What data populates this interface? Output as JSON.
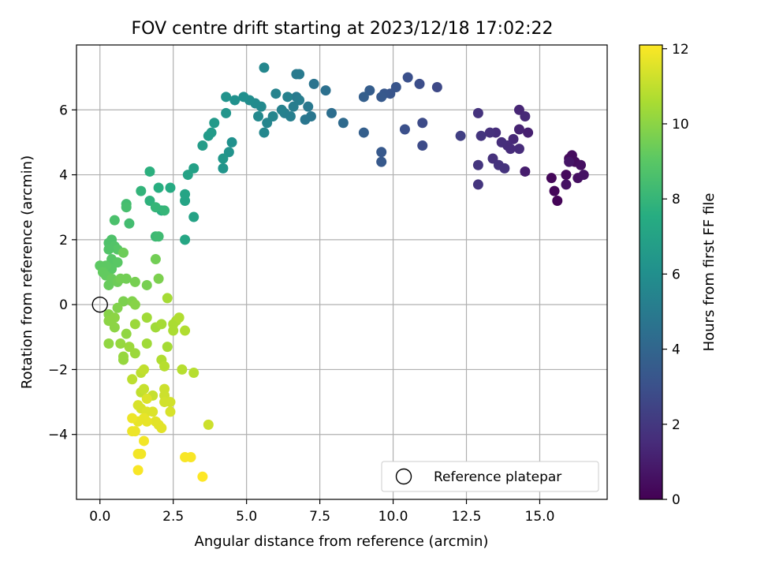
{
  "chart_data": {
    "type": "scatter",
    "title": "FOV centre drift starting at 2023/12/18 17:02:22",
    "xlabel": "Angular distance from reference (arcmin)",
    "ylabel": "Rotation from reference (arcmin)",
    "xlim": [
      -0.8,
      17.3
    ],
    "ylim": [
      -6.0,
      8.0
    ],
    "xticks": [
      0.0,
      2.5,
      5.0,
      7.5,
      10.0,
      12.5,
      15.0
    ],
    "xtick_labels": [
      "0.0",
      "2.5",
      "5.0",
      "7.5",
      "10.0",
      "12.5",
      "15.0"
    ],
    "yticks": [
      -4,
      -2,
      0,
      2,
      4,
      6
    ],
    "ytick_labels": [
      "−4",
      "−2",
      "0",
      "2",
      "4",
      "6"
    ],
    "grid": true,
    "colormap": "viridis",
    "colorbar": {
      "label": "Hours from first FF file",
      "range": [
        0,
        12.1
      ],
      "ticks": [
        0,
        2,
        4,
        6,
        8,
        10,
        12
      ],
      "tick_labels": [
        "0",
        "2",
        "4",
        "6",
        "8",
        "10",
        "12"
      ]
    },
    "reference": {
      "x": 0.0,
      "y": 0.0,
      "label": "Reference platepar",
      "marker": "open-circle"
    },
    "legend": {
      "position": "bottom-right",
      "entries": [
        "Reference platepar"
      ]
    },
    "points": [
      {
        "x": 15.4,
        "y": 3.9,
        "c": 0.2
      },
      {
        "x": 15.6,
        "y": 3.2,
        "c": 0.1
      },
      {
        "x": 15.5,
        "y": 3.5,
        "c": 0.2
      },
      {
        "x": 15.9,
        "y": 4.0,
        "c": 0.3
      },
      {
        "x": 16.0,
        "y": 4.5,
        "c": 0.3
      },
      {
        "x": 16.1,
        "y": 4.6,
        "c": 0.4
      },
      {
        "x": 16.2,
        "y": 4.4,
        "c": 0.4
      },
      {
        "x": 16.3,
        "y": 3.9,
        "c": 0.5
      },
      {
        "x": 16.4,
        "y": 4.3,
        "c": 0.5
      },
      {
        "x": 16.5,
        "y": 4.0,
        "c": 0.6
      },
      {
        "x": 15.9,
        "y": 3.7,
        "c": 0.6
      },
      {
        "x": 16.0,
        "y": 4.4,
        "c": 0.7
      },
      {
        "x": 14.5,
        "y": 4.1,
        "c": 1.0
      },
      {
        "x": 14.6,
        "y": 5.3,
        "c": 1.1
      },
      {
        "x": 14.3,
        "y": 5.4,
        "c": 1.2
      },
      {
        "x": 14.3,
        "y": 6.0,
        "c": 1.3
      },
      {
        "x": 14.5,
        "y": 5.8,
        "c": 1.4
      },
      {
        "x": 14.1,
        "y": 5.1,
        "c": 1.4
      },
      {
        "x": 14.0,
        "y": 4.8,
        "c": 1.5
      },
      {
        "x": 13.9,
        "y": 4.9,
        "c": 1.5
      },
      {
        "x": 14.3,
        "y": 4.8,
        "c": 1.5
      },
      {
        "x": 13.7,
        "y": 5.0,
        "c": 1.6
      },
      {
        "x": 13.5,
        "y": 5.3,
        "c": 1.6
      },
      {
        "x": 13.3,
        "y": 5.3,
        "c": 1.7
      },
      {
        "x": 13.4,
        "y": 4.5,
        "c": 1.7
      },
      {
        "x": 13.6,
        "y": 4.3,
        "c": 1.8
      },
      {
        "x": 13.8,
        "y": 4.2,
        "c": 1.8
      },
      {
        "x": 12.9,
        "y": 5.9,
        "c": 1.8
      },
      {
        "x": 13.0,
        "y": 5.2,
        "c": 1.9
      },
      {
        "x": 12.9,
        "y": 4.3,
        "c": 1.9
      },
      {
        "x": 12.9,
        "y": 3.7,
        "c": 1.9
      },
      {
        "x": 12.3,
        "y": 5.2,
        "c": 2.3
      },
      {
        "x": 11.5,
        "y": 6.7,
        "c": 2.7
      },
      {
        "x": 11.0,
        "y": 5.6,
        "c": 2.8
      },
      {
        "x": 11.0,
        "y": 4.9,
        "c": 2.8
      },
      {
        "x": 10.9,
        "y": 6.8,
        "c": 2.9
      },
      {
        "x": 10.5,
        "y": 7.0,
        "c": 3.0
      },
      {
        "x": 10.4,
        "y": 5.4,
        "c": 3.0
      },
      {
        "x": 10.1,
        "y": 6.7,
        "c": 3.2
      },
      {
        "x": 9.9,
        "y": 6.5,
        "c": 3.2
      },
      {
        "x": 9.7,
        "y": 6.5,
        "c": 3.3
      },
      {
        "x": 9.6,
        "y": 6.4,
        "c": 3.4
      },
      {
        "x": 9.6,
        "y": 4.7,
        "c": 3.4
      },
      {
        "x": 9.6,
        "y": 4.4,
        "c": 3.4
      },
      {
        "x": 9.2,
        "y": 6.6,
        "c": 3.6
      },
      {
        "x": 9.0,
        "y": 6.4,
        "c": 3.7
      },
      {
        "x": 9.0,
        "y": 5.3,
        "c": 3.7
      },
      {
        "x": 8.3,
        "y": 5.6,
        "c": 4.2
      },
      {
        "x": 7.9,
        "y": 5.9,
        "c": 4.4
      },
      {
        "x": 7.7,
        "y": 6.6,
        "c": 4.5
      },
      {
        "x": 7.3,
        "y": 6.8,
        "c": 4.7
      },
      {
        "x": 7.2,
        "y": 5.8,
        "c": 4.8
      },
      {
        "x": 7.0,
        "y": 5.7,
        "c": 4.8
      },
      {
        "x": 7.1,
        "y": 6.1,
        "c": 4.9
      },
      {
        "x": 6.8,
        "y": 7.1,
        "c": 5.0
      },
      {
        "x": 6.7,
        "y": 7.1,
        "c": 5.0
      },
      {
        "x": 6.7,
        "y": 6.4,
        "c": 5.0
      },
      {
        "x": 6.8,
        "y": 6.3,
        "c": 5.1
      },
      {
        "x": 6.6,
        "y": 6.1,
        "c": 5.1
      },
      {
        "x": 6.5,
        "y": 5.8,
        "c": 5.2
      },
      {
        "x": 6.3,
        "y": 5.9,
        "c": 5.2
      },
      {
        "x": 6.4,
        "y": 6.4,
        "c": 5.3
      },
      {
        "x": 6.2,
        "y": 6.0,
        "c": 5.3
      },
      {
        "x": 6.0,
        "y": 6.5,
        "c": 5.4
      },
      {
        "x": 5.9,
        "y": 5.8,
        "c": 5.5
      },
      {
        "x": 5.7,
        "y": 5.6,
        "c": 5.5
      },
      {
        "x": 5.6,
        "y": 7.3,
        "c": 5.6
      },
      {
        "x": 5.6,
        "y": 5.3,
        "c": 5.6
      },
      {
        "x": 5.5,
        "y": 6.1,
        "c": 5.7
      },
      {
        "x": 5.4,
        "y": 5.8,
        "c": 5.7
      },
      {
        "x": 5.3,
        "y": 6.2,
        "c": 5.8
      },
      {
        "x": 5.1,
        "y": 6.3,
        "c": 5.9
      },
      {
        "x": 4.9,
        "y": 6.4,
        "c": 6.0
      },
      {
        "x": 4.6,
        "y": 6.3,
        "c": 6.1
      },
      {
        "x": 4.5,
        "y": 5.0,
        "c": 6.1
      },
      {
        "x": 4.3,
        "y": 6.4,
        "c": 6.2
      },
      {
        "x": 4.4,
        "y": 4.7,
        "c": 6.2
      },
      {
        "x": 4.3,
        "y": 5.9,
        "c": 6.3
      },
      {
        "x": 4.2,
        "y": 4.2,
        "c": 6.3
      },
      {
        "x": 4.2,
        "y": 4.5,
        "c": 6.4
      },
      {
        "x": 3.9,
        "y": 5.6,
        "c": 6.5
      },
      {
        "x": 3.8,
        "y": 5.3,
        "c": 6.6
      },
      {
        "x": 3.7,
        "y": 5.2,
        "c": 6.6
      },
      {
        "x": 3.5,
        "y": 4.9,
        "c": 6.7
      },
      {
        "x": 3.2,
        "y": 4.2,
        "c": 6.9
      },
      {
        "x": 3.0,
        "y": 4.0,
        "c": 7.0
      },
      {
        "x": 3.2,
        "y": 2.7,
        "c": 7.0
      },
      {
        "x": 2.9,
        "y": 3.4,
        "c": 7.1
      },
      {
        "x": 2.9,
        "y": 3.2,
        "c": 7.1
      },
      {
        "x": 2.9,
        "y": 2.0,
        "c": 7.2
      },
      {
        "x": 2.4,
        "y": 3.6,
        "c": 7.4
      },
      {
        "x": 2.1,
        "y": 2.9,
        "c": 7.5
      },
      {
        "x": 2.0,
        "y": 3.6,
        "c": 7.6
      },
      {
        "x": 1.7,
        "y": 4.1,
        "c": 7.7
      },
      {
        "x": 1.7,
        "y": 3.2,
        "c": 7.8
      },
      {
        "x": 1.4,
        "y": 3.5,
        "c": 7.9
      },
      {
        "x": 1.9,
        "y": 3.0,
        "c": 8.0
      },
      {
        "x": 2.2,
        "y": 2.9,
        "c": 8.0
      },
      {
        "x": 1.9,
        "y": 2.1,
        "c": 8.2
      },
      {
        "x": 2.0,
        "y": 2.1,
        "c": 8.3
      },
      {
        "x": 1.0,
        "y": 2.5,
        "c": 8.4
      },
      {
        "x": 0.9,
        "y": 3.1,
        "c": 8.4
      },
      {
        "x": 0.9,
        "y": 3.0,
        "c": 8.5
      },
      {
        "x": 0.5,
        "y": 2.6,
        "c": 8.6
      },
      {
        "x": 0.4,
        "y": 2.0,
        "c": 8.7
      },
      {
        "x": 0.3,
        "y": 1.9,
        "c": 8.7
      },
      {
        "x": 0.5,
        "y": 1.8,
        "c": 8.8
      },
      {
        "x": 0.6,
        "y": 1.7,
        "c": 8.9
      },
      {
        "x": 0.3,
        "y": 1.7,
        "c": 8.8
      },
      {
        "x": 0.4,
        "y": 1.4,
        "c": 8.9
      },
      {
        "x": 0.6,
        "y": 1.3,
        "c": 9.0
      },
      {
        "x": 0.4,
        "y": 1.1,
        "c": 9.0
      },
      {
        "x": 0.2,
        "y": 1.2,
        "c": 9.1
      },
      {
        "x": 0.0,
        "y": 1.2,
        "c": 9.1
      },
      {
        "x": 0.1,
        "y": 1.0,
        "c": 9.2
      },
      {
        "x": 0.2,
        "y": 0.9,
        "c": 9.2
      },
      {
        "x": 0.4,
        "y": 0.8,
        "c": 9.3
      },
      {
        "x": 0.3,
        "y": 0.6,
        "c": 9.3
      },
      {
        "x": 0.6,
        "y": 0.7,
        "c": 9.4
      },
      {
        "x": 0.8,
        "y": 1.6,
        "c": 9.4
      },
      {
        "x": 0.7,
        "y": 0.8,
        "c": 9.5
      },
      {
        "x": 0.9,
        "y": 0.8,
        "c": 9.5
      },
      {
        "x": 1.2,
        "y": 0.7,
        "c": 9.6
      },
      {
        "x": 1.6,
        "y": 0.6,
        "c": 9.6
      },
      {
        "x": 1.9,
        "y": 1.4,
        "c": 9.5
      },
      {
        "x": 2.0,
        "y": 0.8,
        "c": 9.7
      },
      {
        "x": 0.8,
        "y": 0.1,
        "c": 9.7
      },
      {
        "x": 0.6,
        "y": -0.1,
        "c": 9.8
      },
      {
        "x": 1.1,
        "y": 0.1,
        "c": 9.8
      },
      {
        "x": 1.2,
        "y": 0.0,
        "c": 9.9
      },
      {
        "x": 0.3,
        "y": -0.3,
        "c": 9.9
      },
      {
        "x": 0.5,
        "y": -0.4,
        "c": 10.0
      },
      {
        "x": 0.3,
        "y": -0.5,
        "c": 10.0
      },
      {
        "x": 0.5,
        "y": -0.7,
        "c": 10.0
      },
      {
        "x": 0.9,
        "y": -0.9,
        "c": 10.1
      },
      {
        "x": 0.3,
        "y": -1.2,
        "c": 10.1
      },
      {
        "x": 0.7,
        "y": -1.2,
        "c": 10.2
      },
      {
        "x": 0.8,
        "y": -1.7,
        "c": 10.2
      },
      {
        "x": 0.8,
        "y": -1.6,
        "c": 10.2
      },
      {
        "x": 1.0,
        "y": -1.3,
        "c": 10.3
      },
      {
        "x": 1.2,
        "y": -1.5,
        "c": 10.3
      },
      {
        "x": 1.2,
        "y": -0.6,
        "c": 10.3
      },
      {
        "x": 1.6,
        "y": -0.4,
        "c": 10.4
      },
      {
        "x": 1.6,
        "y": -1.2,
        "c": 10.4
      },
      {
        "x": 1.9,
        "y": -0.7,
        "c": 10.4
      },
      {
        "x": 2.1,
        "y": -0.6,
        "c": 10.5
      },
      {
        "x": 2.3,
        "y": 0.2,
        "c": 10.5
      },
      {
        "x": 2.3,
        "y": -1.3,
        "c": 10.5
      },
      {
        "x": 2.5,
        "y": -0.6,
        "c": 10.6
      },
      {
        "x": 2.6,
        "y": -0.5,
        "c": 10.6
      },
      {
        "x": 2.5,
        "y": -0.8,
        "c": 10.6
      },
      {
        "x": 2.7,
        "y": -0.4,
        "c": 10.7
      },
      {
        "x": 2.9,
        "y": -0.8,
        "c": 10.7
      },
      {
        "x": 2.1,
        "y": -1.7,
        "c": 10.7
      },
      {
        "x": 2.2,
        "y": -1.9,
        "c": 10.8
      },
      {
        "x": 2.8,
        "y": -2.0,
        "c": 10.8
      },
      {
        "x": 3.2,
        "y": -2.1,
        "c": 10.8
      },
      {
        "x": 1.1,
        "y": -2.3,
        "c": 10.9
      },
      {
        "x": 1.4,
        "y": -2.1,
        "c": 10.9
      },
      {
        "x": 1.5,
        "y": -2.0,
        "c": 11.0
      },
      {
        "x": 1.4,
        "y": -2.7,
        "c": 11.0
      },
      {
        "x": 1.5,
        "y": -2.6,
        "c": 11.1
      },
      {
        "x": 1.8,
        "y": -2.8,
        "c": 11.1
      },
      {
        "x": 2.2,
        "y": -2.6,
        "c": 11.2
      },
      {
        "x": 2.2,
        "y": -2.8,
        "c": 11.2
      },
      {
        "x": 2.2,
        "y": -3.0,
        "c": 11.3
      },
      {
        "x": 2.4,
        "y": -3.0,
        "c": 11.3
      },
      {
        "x": 2.4,
        "y": -3.3,
        "c": 11.4
      },
      {
        "x": 1.3,
        "y": -3.1,
        "c": 11.4
      },
      {
        "x": 1.4,
        "y": -3.2,
        "c": 11.4
      },
      {
        "x": 1.6,
        "y": -2.9,
        "c": 11.5
      },
      {
        "x": 1.6,
        "y": -3.3,
        "c": 11.5
      },
      {
        "x": 1.8,
        "y": -3.3,
        "c": 11.5
      },
      {
        "x": 1.9,
        "y": -3.6,
        "c": 11.6
      },
      {
        "x": 2.0,
        "y": -3.7,
        "c": 11.6
      },
      {
        "x": 2.1,
        "y": -3.8,
        "c": 11.6
      },
      {
        "x": 1.5,
        "y": -3.5,
        "c": 11.7
      },
      {
        "x": 1.6,
        "y": -3.6,
        "c": 11.7
      },
      {
        "x": 1.3,
        "y": -3.6,
        "c": 11.7
      },
      {
        "x": 1.1,
        "y": -3.5,
        "c": 11.8
      },
      {
        "x": 1.1,
        "y": -3.9,
        "c": 11.8
      },
      {
        "x": 1.2,
        "y": -3.9,
        "c": 11.8
      },
      {
        "x": 1.5,
        "y": -4.2,
        "c": 11.9
      },
      {
        "x": 1.4,
        "y": -4.6,
        "c": 11.9
      },
      {
        "x": 1.3,
        "y": -4.6,
        "c": 11.9
      },
      {
        "x": 1.3,
        "y": -5.1,
        "c": 12.0
      },
      {
        "x": 2.9,
        "y": -4.7,
        "c": 12.0
      },
      {
        "x": 3.1,
        "y": -4.7,
        "c": 12.0
      },
      {
        "x": 3.5,
        "y": -5.3,
        "c": 12.1
      },
      {
        "x": 3.7,
        "y": -3.7,
        "c": 11.2
      }
    ]
  }
}
